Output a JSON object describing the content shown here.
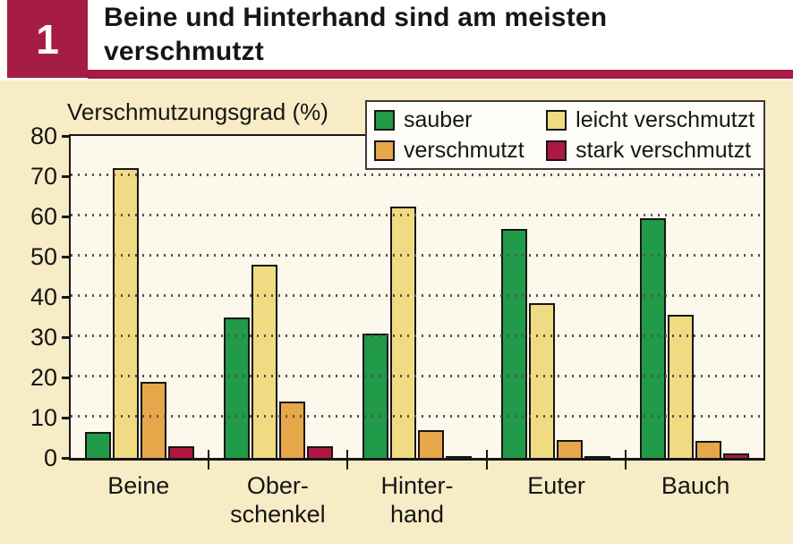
{
  "header": {
    "number": "1",
    "title": "Beine und Hinterhand sind am meisten verschmutzt",
    "title_line1": "Beine und Hinterhand sind am meisten",
    "title_line2": "verschmutzt"
  },
  "colors": {
    "accent_crimson": "#a51c44",
    "panel_bg": "#f8ecc6",
    "plot_bg": "#fdf8ec",
    "grid_dots": "#57524a",
    "axis": "#161616",
    "legend_bg": "#fffdf7"
  },
  "chart_data": {
    "type": "bar",
    "title": "Verschmutzungsgrad (%)",
    "xlabel": "",
    "ylabel": "Verschmutzungsgrad (%)",
    "ylim": [
      0,
      80
    ],
    "yticks": [
      0,
      10,
      20,
      30,
      40,
      50,
      60,
      70,
      80
    ],
    "grid": "horizontal dotted lines at 10–70",
    "legend_position": "top-right overlay, 2 columns",
    "categories": [
      "Beine",
      "Oberschenkel",
      "Hinterhand",
      "Euter",
      "Bauch"
    ],
    "category_label_lines": [
      [
        "Beine"
      ],
      [
        "Ober-",
        "schenkel"
      ],
      [
        "Hinter-",
        "hand"
      ],
      [
        "Euter"
      ],
      [
        "Bauch"
      ]
    ],
    "series": [
      {
        "name": "sauber",
        "color": "#219a49",
        "values": [
          6.5,
          35,
          31,
          57,
          59.5
        ]
      },
      {
        "name": "leicht verschmutzt",
        "color": "#f0db83",
        "values": [
          72,
          48,
          62.5,
          38.5,
          35.5
        ]
      },
      {
        "name": "verschmutzt",
        "color": "#e6a64a",
        "values": [
          19,
          14,
          7,
          4.5,
          4.3
        ]
      },
      {
        "name": "stark verschmutzt",
        "color": "#ad1742",
        "values": [
          3,
          3,
          0.5,
          0.5,
          1.2
        ]
      }
    ]
  }
}
